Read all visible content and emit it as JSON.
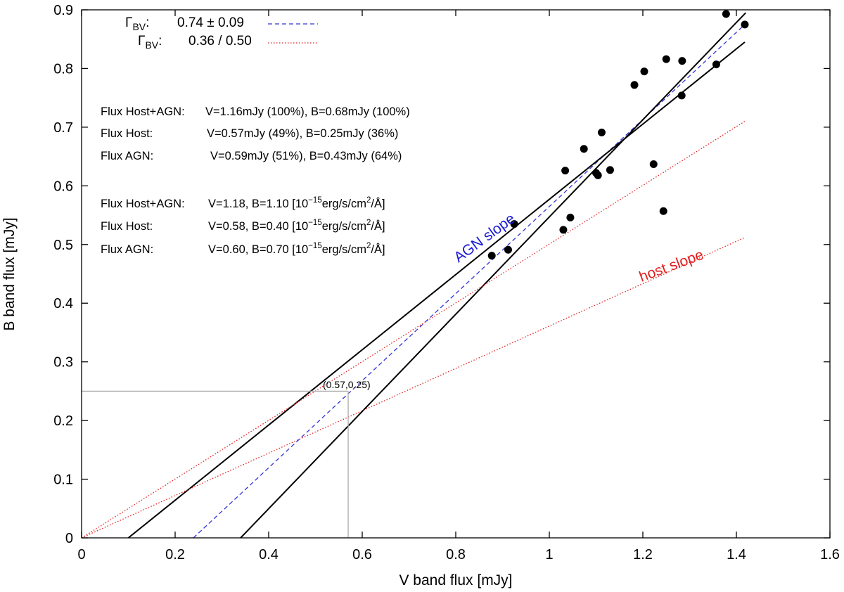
{
  "chart_data": {
    "type": "scatter",
    "title": "",
    "xlabel": "V band flux [mJy]",
    "ylabel": "B band flux [mJy]",
    "xlim": [
      0,
      1.6
    ],
    "ylim": [
      0,
      0.9
    ],
    "x_ticks": [
      0,
      0.2,
      0.4,
      0.6,
      0.8,
      1.0,
      1.2,
      1.4,
      1.6
    ],
    "x_tick_labels": [
      "0",
      "0.2",
      "0.4",
      "0.6",
      "0.8",
      "1",
      "1.2",
      "1.4",
      "1.6"
    ],
    "y_ticks": [
      0,
      0.1,
      0.2,
      0.3,
      0.4,
      0.5,
      0.6,
      0.7,
      0.8,
      0.9
    ],
    "y_tick_labels": [
      "0",
      "0.1",
      "0.2",
      "0.3",
      "0.4",
      "0.5",
      "0.6",
      "0.7",
      "0.8",
      "0.9"
    ],
    "grid": false,
    "points": [
      [
        0.877,
        0.481
      ],
      [
        0.912,
        0.491
      ],
      [
        0.925,
        0.535
      ],
      [
        1.03,
        0.525
      ],
      [
        1.034,
        0.626
      ],
      [
        1.045,
        0.546
      ],
      [
        1.074,
        0.663
      ],
      [
        1.1,
        0.622
      ],
      [
        1.104,
        0.618
      ],
      [
        1.112,
        0.691
      ],
      [
        1.13,
        0.627
      ],
      [
        1.182,
        0.772
      ],
      [
        1.203,
        0.795
      ],
      [
        1.223,
        0.637
      ],
      [
        1.244,
        0.557
      ],
      [
        1.25,
        0.816
      ],
      [
        1.283,
        0.754
      ],
      [
        1.284,
        0.813
      ],
      [
        1.357,
        0.807
      ],
      [
        1.378,
        0.893
      ],
      [
        1.418,
        0.875
      ]
    ],
    "series": [
      {
        "name": "AGN slope fit",
        "style": "dashed",
        "color": "#3333dd",
        "x": [
          0.239,
          1.418
        ],
        "y": [
          0,
          0.875
        ]
      },
      {
        "name": "fit bound 1",
        "style": "solid",
        "color": "#000000",
        "x": [
          0.1,
          1.418
        ],
        "y": [
          0,
          0.845
        ]
      },
      {
        "name": "fit bound 2",
        "style": "solid",
        "color": "#000000",
        "x": [
          0.34,
          1.42
        ],
        "y": [
          0,
          0.895
        ]
      },
      {
        "name": "host slope 0.50",
        "style": "dotted",
        "color": "#e02020",
        "x": [
          0,
          1.418
        ],
        "y": [
          0,
          0.71
        ]
      },
      {
        "name": "host slope 0.36",
        "style": "dotted",
        "color": "#e02020",
        "x": [
          0,
          1.418
        ],
        "y": [
          0,
          0.512
        ]
      },
      {
        "name": "V guide",
        "style": "solid",
        "color": "#aaaaaa",
        "x": [
          0.57,
          0.57
        ],
        "y": [
          0,
          0.25
        ]
      },
      {
        "name": "B guide",
        "style": "solid",
        "color": "#aaaaaa",
        "x": [
          0,
          0.57
        ],
        "y": [
          0.25,
          0.25
        ]
      }
    ],
    "legend": {
      "placement": "top-left",
      "entries": [
        {
          "symbol": "Γ",
          "sub": "BV",
          "sep": ":",
          "value": "0.74 ± 0.09",
          "style": "dashed",
          "color": "#3333dd"
        },
        {
          "symbol": "Γ",
          "sub": "BV",
          "sep": ":",
          "value": "0.36 / 0.50",
          "style": "dotted",
          "color": "#e02020"
        }
      ]
    },
    "annotations": {
      "table1": [
        {
          "label": "Flux Host+AGN:",
          "value": "V=1.16mJy (100%), B=0.68mJy (100%)"
        },
        {
          "label": "Flux Host:",
          "value": "V=0.57mJy (49%), B=0.25mJy (36%)"
        },
        {
          "label": "Flux AGN:",
          "value": "V=0.59mJy (51%), B=0.43mJy (64%)"
        }
      ],
      "table2": [
        {
          "label": "Flux Host+AGN:",
          "value": "V=1.18, B=1.10 [10",
          "exp": "−15",
          "unit": "erg/s/cm",
          "unit_exp": "2",
          "unit_end": "/Å]"
        },
        {
          "label": "Flux Host:",
          "value": "V=0.58, B=0.40 [10",
          "exp": "−15",
          "unit": "erg/s/cm",
          "unit_exp": "2",
          "unit_end": "/Å]"
        },
        {
          "label": "Flux AGN:",
          "value": "V=0.60, B=0.70 [10",
          "exp": "−15",
          "unit": "erg/s/cm",
          "unit_exp": "2",
          "unit_end": "/Å]"
        }
      ],
      "agn_slope_label": "AGN slope",
      "agn_slope_color": "#1a1ad6",
      "host_slope_label": "host slope",
      "host_slope_color": "#e02020",
      "point_label": "(0.57,0.25)"
    }
  }
}
